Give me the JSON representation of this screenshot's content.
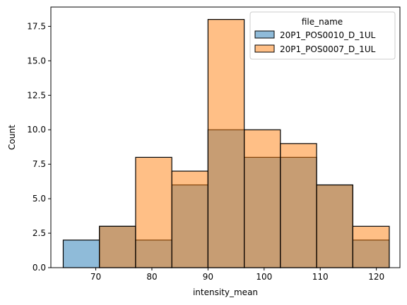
{
  "chart_data": {
    "type": "bar",
    "subtype": "histogram",
    "title": "",
    "xlabel": "intensity_mean",
    "ylabel": "Count",
    "xlim": [
      62.0,
      124.2
    ],
    "ylim": [
      0,
      18.9
    ],
    "x_ticks": [
      70,
      80,
      90,
      100,
      110,
      120
    ],
    "y_ticks": [
      0.0,
      2.5,
      5.0,
      7.5,
      10.0,
      12.5,
      15.0,
      17.5
    ],
    "y_tick_labels": [
      "0.0",
      "2.5",
      "5.0",
      "7.5",
      "10.0",
      "12.5",
      "15.0",
      "17.5"
    ],
    "bin_edges": [
      64.2,
      70.65,
      77.1,
      83.55,
      90.0,
      96.45,
      102.9,
      109.35,
      115.8,
      122.3
    ],
    "series": [
      {
        "name": "20P1_POS0010_D_1UL",
        "color": "#1f77b4",
        "alpha": 0.5,
        "values": [
          2,
          3,
          2,
          6,
          10,
          8,
          8,
          6,
          2
        ]
      },
      {
        "name": "20P1_POS0007_D_1UL",
        "color": "#ff7f0e",
        "alpha": 0.5,
        "values": [
          0,
          3,
          8,
          7,
          18,
          10,
          9,
          6,
          3
        ]
      }
    ],
    "legend": {
      "title": "file_name",
      "placement": "top-right"
    },
    "grid": false
  }
}
